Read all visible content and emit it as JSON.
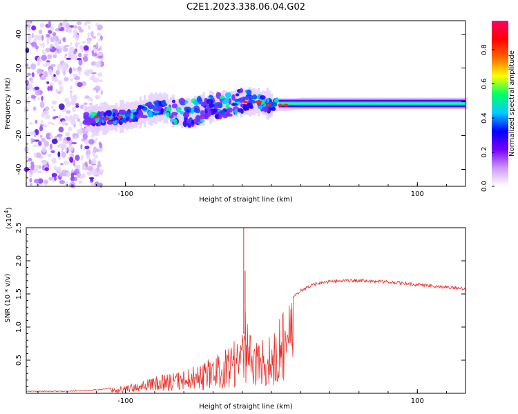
{
  "title": "C2E1.2023.338.06.04.G02",
  "chart_data": [
    {
      "type": "heatmap",
      "xlabel": "Height of straight line (km)",
      "ylabel": "Frequency (Hz)",
      "xlim": [
        -168,
        133
      ],
      "ylim": [
        -50,
        48
      ],
      "xticks": [
        -100,
        100
      ],
      "yticks": [
        -40,
        -20,
        0,
        20,
        40
      ],
      "ytick_labels": [
        "-40",
        "-20",
        "0",
        "20",
        "40"
      ],
      "xtick_labels": [
        "-100",
        "100"
      ],
      "colorbar": {
        "label": "Normalized spectral amplitude",
        "ticks": [
          0.0,
          0.2,
          0.4,
          0.6,
          0.8
        ],
        "tick_labels": [
          "0.0",
          "0.2",
          "0.4",
          "0.6",
          "0.8"
        ],
        "range": [
          0,
          0.97
        ],
        "colormap": [
          "#ffffff",
          "#cc99ff",
          "#7700ff",
          "#0000ff",
          "#00ccff",
          "#00ff66",
          "#ffff00",
          "#ff6600",
          "#ff0000",
          "#ff0066"
        ]
      },
      "ridge": {
        "x": [
          -126,
          -116,
          -106,
          -96,
          -86,
          -76,
          -66,
          -56,
          -46,
          -36,
          -26,
          -18,
          -10,
          -4,
          0,
          4,
          10,
          20,
          40,
          60,
          80,
          100,
          120,
          133
        ],
        "y": [
          -10,
          -10,
          -9,
          -8,
          -5,
          -3,
          -6,
          -7,
          -4,
          -2,
          -1,
          0,
          0,
          -1,
          -2,
          -2,
          -2,
          -1,
          -1,
          -1,
          -1,
          -1,
          -1,
          -1
        ]
      }
    },
    {
      "type": "line",
      "xlabel": "Height of straight line (km)",
      "ylabel": "SNR (10 * v/v)",
      "scale_label": "(x10",
      "scale_exp": "4",
      "scale_close": ")",
      "xlim": [
        -168,
        133
      ],
      "ylim": [
        0,
        2.5
      ],
      "xticks": [
        -100,
        100
      ],
      "xtick_labels": [
        "-100",
        "100"
      ],
      "yticks": [
        0.5,
        1.0,
        1.5,
        2.0,
        2.5
      ],
      "ytick_labels": [
        "0.5",
        "1.0",
        "1.5",
        "2.0",
        "2.5"
      ],
      "color": "#e8302a",
      "series_envelope": {
        "x": [
          -168,
          -140,
          -120,
          -110,
          -100,
          -90,
          -80,
          -70,
          -60,
          -50,
          -40,
          -30,
          -25,
          -20,
          -18,
          -15,
          -10,
          -5,
          0,
          5,
          10,
          20,
          30,
          40,
          50,
          60,
          70,
          80,
          90,
          100,
          110,
          120,
          133
        ],
        "y": [
          0.03,
          0.03,
          0.05,
          0.08,
          0.12,
          0.18,
          0.25,
          0.3,
          0.35,
          0.45,
          0.55,
          0.7,
          0.8,
          0.9,
          1.4,
          0.9,
          0.85,
          0.85,
          0.9,
          1.1,
          1.35,
          1.55,
          1.65,
          1.69,
          1.7,
          1.7,
          1.69,
          1.68,
          1.66,
          1.64,
          1.62,
          1.6,
          1.58
        ]
      },
      "spikes": [
        {
          "x": -19,
          "y": 2.5
        },
        {
          "x": -18,
          "y": 1.85
        }
      ]
    }
  ]
}
